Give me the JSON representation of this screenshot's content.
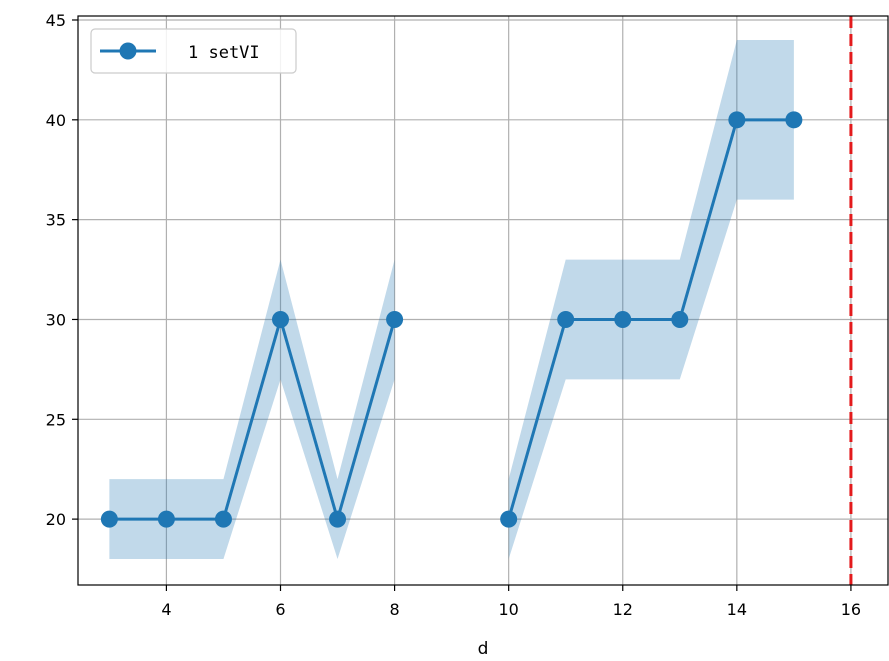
{
  "chart_data": {
    "type": "line",
    "xlabel": "d",
    "ylabel": "",
    "xlim": [
      2.45,
      16.65
    ],
    "ylim": [
      16.7,
      45.2
    ],
    "xticks": [
      4,
      6,
      8,
      10,
      12,
      14,
      16
    ],
    "yticks": [
      20,
      25,
      30,
      35,
      40,
      45
    ],
    "grid": true,
    "legend_position": "top-left",
    "series": [
      {
        "name": "1 setVI",
        "color": "#1f77b4",
        "marker": "circle",
        "segments": [
          [
            {
              "x": 3,
              "y": 20,
              "lo": 18,
              "hi": 22
            },
            {
              "x": 4,
              "y": 20,
              "lo": 18,
              "hi": 22
            },
            {
              "x": 5,
              "y": 20,
              "lo": 18,
              "hi": 22
            },
            {
              "x": 6,
              "y": 30,
              "lo": 27,
              "hi": 33
            },
            {
              "x": 7,
              "y": 20,
              "lo": 18,
              "hi": 22
            },
            {
              "x": 8,
              "y": 30,
              "lo": 27,
              "hi": 33
            }
          ],
          [
            {
              "x": 10,
              "y": 20,
              "lo": 18,
              "hi": 22
            },
            {
              "x": 11,
              "y": 30,
              "lo": 27,
              "hi": 33
            },
            {
              "x": 12,
              "y": 30,
              "lo": 27,
              "hi": 33
            },
            {
              "x": 13,
              "y": 30,
              "lo": 27,
              "hi": 33
            },
            {
              "x": 14,
              "y": 40,
              "lo": 36,
              "hi": 44
            },
            {
              "x": 15,
              "y": 40,
              "lo": 36,
              "hi": 44
            }
          ]
        ]
      }
    ],
    "vline": {
      "x": 16,
      "color": "#e31a1c",
      "style": "dashed"
    }
  }
}
